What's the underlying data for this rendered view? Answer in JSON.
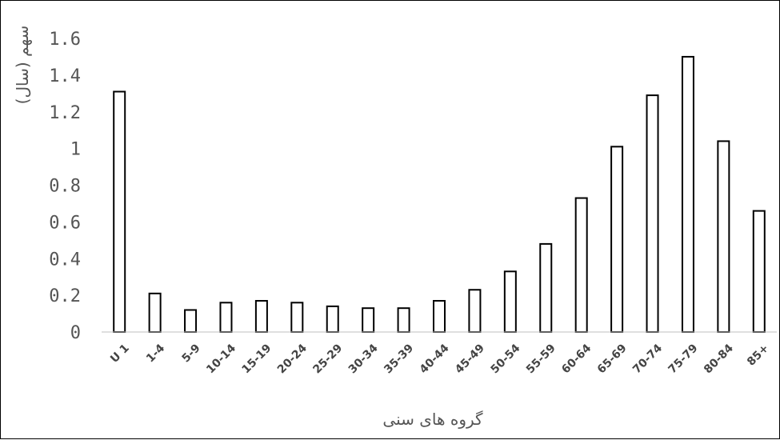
{
  "chart_data": {
    "type": "bar",
    "title": "",
    "xlabel": "گروه های سنی",
    "ylabel": "سهم (سال)",
    "ylim": [
      0,
      1.6
    ],
    "yticks": [
      "0",
      "0.2",
      "0.4",
      "0.6",
      "0.8",
      "1",
      "1.2",
      "1.4",
      "1.6"
    ],
    "grid": false,
    "categories": [
      "U 1",
      "1-4",
      "5-9",
      "10-14",
      "15-19",
      "20-24",
      "25-29",
      "30-34",
      "35-39",
      "40-44",
      "45-49",
      "50-54",
      "55-59",
      "60-64",
      "65-69",
      "70-74",
      "75-79",
      "80-84",
      "85+"
    ],
    "series": [
      {
        "values": [
          1.31,
          0.21,
          0.12,
          0.16,
          0.17,
          0.16,
          0.14,
          0.13,
          0.13,
          0.17,
          0.23,
          0.33,
          0.48,
          0.73,
          1.01,
          1.29,
          1.5,
          1.04,
          0.66
        ],
        "fill": "#ffffff",
        "stroke": "#000000"
      }
    ]
  }
}
